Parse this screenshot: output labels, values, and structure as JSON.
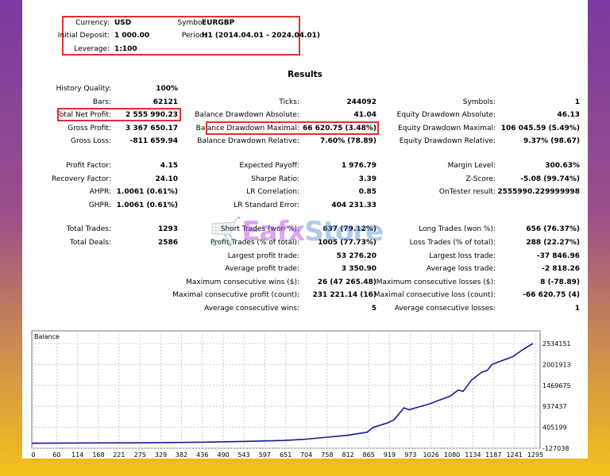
{
  "header": [
    {
      "label": "Currency:",
      "value": "USD"
    },
    {
      "label": "Symbol:",
      "value": "EURGBP"
    },
    {
      "label": "Initial Deposit:",
      "value": "1 000.00"
    },
    {
      "label": "Period:",
      "value": "H1 (2014.04.01 - 2024.04.01)"
    },
    {
      "label": "Leverage:",
      "value": "1:100"
    }
  ],
  "results_title": "Results",
  "col1": [
    {
      "label": "History Quality:",
      "value": "100%"
    },
    {
      "label": "Bars:",
      "value": "62121"
    },
    {
      "label": "Total Net Profit:",
      "value": "2 555 990.23"
    },
    {
      "label": "Gross Profit:",
      "value": "3 367 650.17"
    },
    {
      "label": "Gross Loss:",
      "value": "-811 659.94"
    },
    {
      "label": "Profit Factor:",
      "value": "4.15"
    },
    {
      "label": "Recovery Factor:",
      "value": "24.10"
    },
    {
      "label": "AHPR:",
      "value": "1.0061 (0.61%)"
    },
    {
      "label": "GHPR:",
      "value": "1.0061 (0.61%)"
    },
    {
      "label": "Total Trades:",
      "value": "1293"
    },
    {
      "label": "Total Deals:",
      "value": "2586"
    }
  ],
  "col2": [
    {
      "label": "Ticks:",
      "value": "244092"
    },
    {
      "label": "Balance Drawdown Absolute:",
      "value": "41.04"
    },
    {
      "label": "Balance Drawdown Maximal:",
      "value": "66 620.75 (3.48%)"
    },
    {
      "label": "Balance Drawdown Relative:",
      "value": "7.60% (78.89)"
    },
    {
      "label": "Expected Payoff:",
      "value": "1 976.79"
    },
    {
      "label": "Sharpe Ratio:",
      "value": "3.39"
    },
    {
      "label": "LR Correlation:",
      "value": "0.85"
    },
    {
      "label": "LR Standard Error:",
      "value": "404 231.33"
    },
    {
      "label": "Short Trades (won %):",
      "value": "637 (79.12%)"
    },
    {
      "label": "Profit Trades (% of total):",
      "value": "1005 (77.73%)"
    },
    {
      "label": "Largest profit trade:",
      "value": "53 276.20"
    },
    {
      "label": "Average profit trade:",
      "value": "3 350.90"
    },
    {
      "label": "Maximum consecutive wins ($):",
      "value": "26 (47 265.48)"
    },
    {
      "label": "Maximal consecutive profit (count):",
      "value": "231 221.14 (16)"
    },
    {
      "label": "Average consecutive wins:",
      "value": "5"
    }
  ],
  "col3": [
    {
      "label": "Symbols:",
      "value": "1"
    },
    {
      "label": "Equity Drawdown Absolute:",
      "value": "46.13"
    },
    {
      "label": "Equity Drawdown Maximal:",
      "value": "106 045.59 (5.49%)"
    },
    {
      "label": "Equity Drawdown Relative:",
      "value": "9.37% (98.67)"
    },
    {
      "label": "Margin Level:",
      "value": "300.63%"
    },
    {
      "label": "Z-Score:",
      "value": "-5.08 (99.74%)"
    },
    {
      "label": "OnTester result:",
      "value": "2555990.229999998"
    },
    {
      "label": "Long Trades (won %):",
      "value": "656 (76.37%)"
    },
    {
      "label": "Loss Trades (% of total):",
      "value": "288 (22.27%)"
    },
    {
      "label": "Largest loss trade:",
      "value": "-37 846.96"
    },
    {
      "label": "Average loss trade:",
      "value": "-2 818.26"
    },
    {
      "label": "Maximum consecutive losses ($):",
      "value": "8 (-78.89)"
    },
    {
      "label": "Maximal consecutive loss (count):",
      "value": "-66 620.75 (4)"
    },
    {
      "label": "Average consecutive losses:",
      "value": "1"
    }
  ],
  "watermark": {
    "part1": "Eafx",
    "part2": "Store"
  },
  "chart_data": {
    "type": "line",
    "title": "Balance",
    "line_color": "#1a1a9a",
    "x_ticks": [
      "0",
      "60",
      "114",
      "168",
      "221",
      "275",
      "329",
      "382",
      "436",
      "490",
      "543",
      "597",
      "651",
      "704",
      "758",
      "812",
      "865",
      "919",
      "973",
      "1026",
      "1080",
      "1134",
      "1187",
      "1241",
      "1295"
    ],
    "y_ticks": [
      "2534151",
      "2001913",
      "1469675",
      "937437",
      "405199",
      "-127038"
    ],
    "ylim": [
      -127038,
      2534151
    ],
    "xlim": [
      0,
      1295
    ],
    "grid": true,
    "series": [
      {
        "x": [
          0,
          275,
          436,
          543,
          651,
          704,
          758,
          812,
          865,
          880,
          919,
          935,
          960,
          973,
          1026,
          1080,
          1100,
          1113,
          1134,
          1160,
          1175,
          1187,
          1200,
          1241,
          1270,
          1293
        ],
        "values": [
          1000,
          10000,
          25000,
          45000,
          70000,
          100000,
          150000,
          200000,
          280000,
          400000,
          520000,
          600000,
          900000,
          850000,
          1000000,
          1200000,
          1350000,
          1320000,
          1600000,
          1800000,
          1850000,
          2000000,
          2050000,
          2200000,
          2400000,
          2534151
        ]
      }
    ]
  }
}
